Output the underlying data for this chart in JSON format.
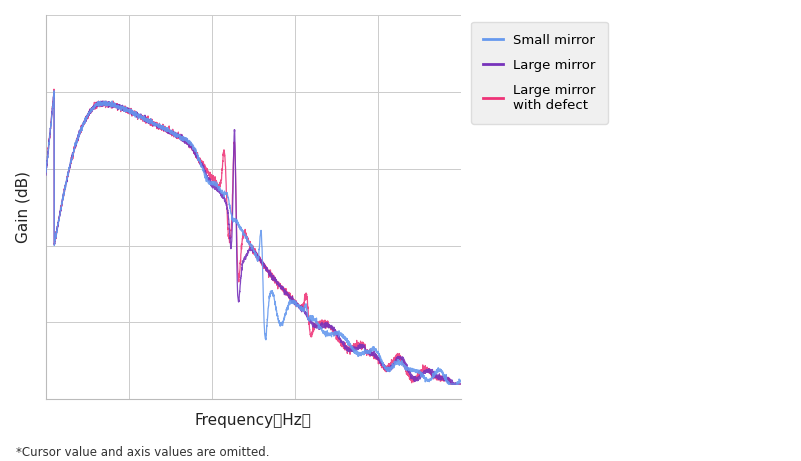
{
  "xlabel": "Frequency（Hz）",
  "ylabel": "Gain (dB)",
  "note": "*Cursor value and axis values are omitted.",
  "background_color": "#ffffff",
  "grid_color": "#cccccc",
  "legend_entries": [
    "Small mirror",
    "Large mirror",
    "Large mirror\nwith defect"
  ],
  "line_colors": {
    "small": "#6699ee",
    "large": "#7733bb",
    "defect": "#ee3377"
  },
  "num_points": 3000
}
